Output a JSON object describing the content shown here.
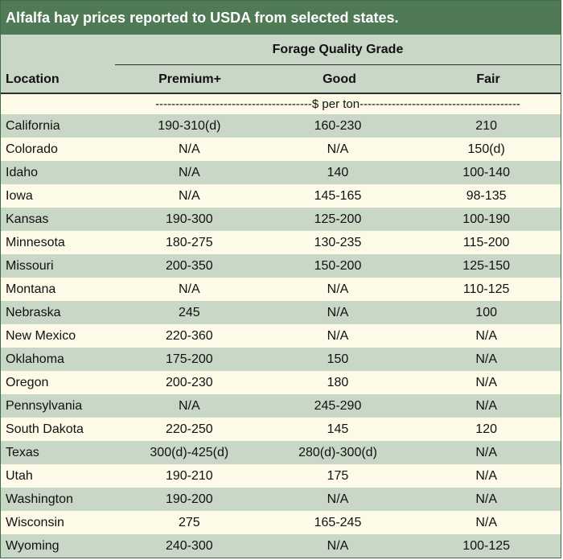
{
  "title": "Alfalfa hay prices reported to USDA from selected states.",
  "group_header": "Forage Quality Grade",
  "columns": {
    "location": "Location",
    "premium": "Premium+",
    "good": "Good",
    "fair": "Fair"
  },
  "unit_line": "---------------------------------------$ per ton----------------------------------------",
  "rows": [
    {
      "location": "California",
      "premium": "190-310(d)",
      "good": "160-230",
      "fair": "210"
    },
    {
      "location": "Colorado",
      "premium": "N/A",
      "good": "N/A",
      "fair": "150(d)"
    },
    {
      "location": "Idaho",
      "premium": "N/A",
      "good": "140",
      "fair": "100-140"
    },
    {
      "location": "Iowa",
      "premium": "N/A",
      "good": "145-165",
      "fair": "98-135"
    },
    {
      "location": "Kansas",
      "premium": "190-300",
      "good": "125-200",
      "fair": "100-190"
    },
    {
      "location": "Minnesota",
      "premium": "180-275",
      "good": "130-235",
      "fair": "115-200"
    },
    {
      "location": "Missouri",
      "premium": "200-350",
      "good": "150-200",
      "fair": "125-150"
    },
    {
      "location": "Montana",
      "premium": "N/A",
      "good": "N/A",
      "fair": "110-125"
    },
    {
      "location": "Nebraska",
      "premium": "245",
      "good": "N/A",
      "fair": "100"
    },
    {
      "location": "New Mexico",
      "premium": "220-360",
      "good": "N/A",
      "fair": "N/A"
    },
    {
      "location": "Oklahoma",
      "premium": "175-200",
      "good": "150",
      "fair": "N/A"
    },
    {
      "location": "Oregon",
      "premium": "200-230",
      "good": "180",
      "fair": "N/A"
    },
    {
      "location": "Pennsylvania",
      "premium": "N/A",
      "good": "245-290",
      "fair": "N/A"
    },
    {
      "location": "South Dakota",
      "premium": "220-250",
      "good": "145",
      "fair": "120"
    },
    {
      "location": "Texas",
      "premium": "300(d)-425(d)",
      "good": "280(d)-300(d)",
      "fair": "N/A"
    },
    {
      "location": "Utah",
      "premium": "190-210",
      "good": "175",
      "fair": "N/A"
    },
    {
      "location": "Washington",
      "premium": "190-200",
      "good": "N/A",
      "fair": "N/A"
    },
    {
      "location": "Wisconsin",
      "premium": "275",
      "good": "165-245",
      "fair": "N/A"
    },
    {
      "location": "Wyoming",
      "premium": "240-300",
      "good": "N/A",
      "fair": "100-125"
    }
  ],
  "colors": {
    "title_bg": "#4f7a55",
    "band": "#c9d7c6",
    "cream": "#fdfbe8"
  }
}
